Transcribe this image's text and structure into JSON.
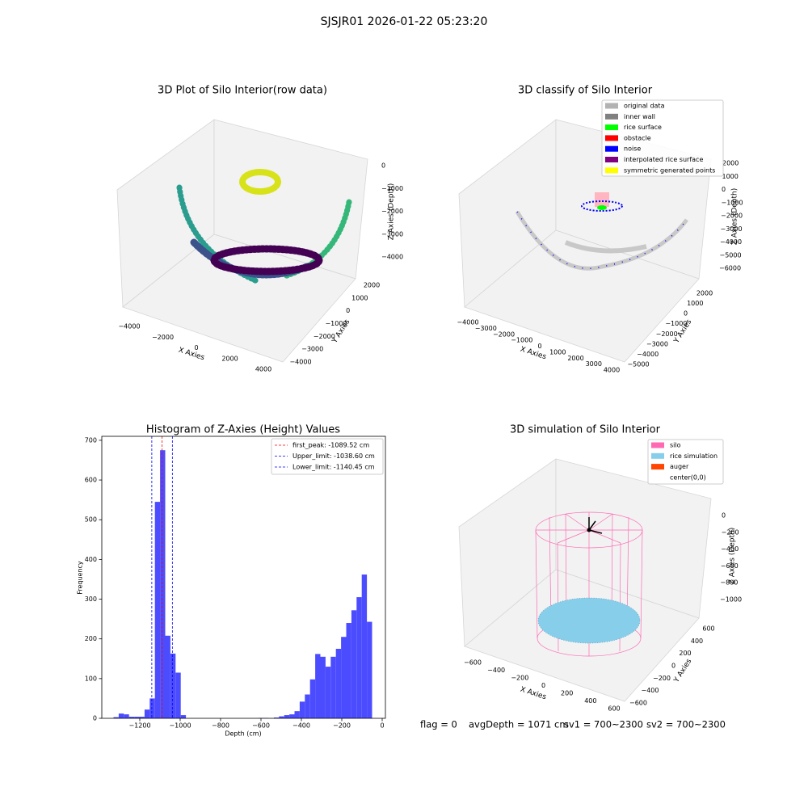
{
  "title": "SJSJR01 2026-01-22 05:23:20",
  "status": [
    "flag = 0",
    "avgDepth = 1071 cm",
    "sv1 = 700~2300",
    "sv2 = 700~2300"
  ],
  "chart_data": [
    {
      "type": "scatter3d",
      "title": "3D Plot of Silo Interior(row data)",
      "xlabel": "X Axies",
      "ylabel": "Y Axies",
      "zlabel": "Z Axies (Depth)",
      "xticks": [
        {
          "value": -4000,
          "label": "−4000"
        },
        {
          "value": -2000,
          "label": "−2000"
        },
        0,
        2000,
        4000
      ],
      "yticks": [
        {
          "value": -4000,
          "label": "−4000"
        },
        {
          "value": -3000,
          "label": "−3000"
        },
        {
          "value": -2000,
          "label": "−2000"
        },
        {
          "value": -1000,
          "label": "−1000"
        },
        0,
        1000,
        2000
      ],
      "zticks": [
        0,
        {
          "value": -1000,
          "label": "−1000"
        },
        {
          "value": -2000,
          "label": "−2000"
        },
        {
          "value": -3000,
          "label": "−3000"
        },
        {
          "value": -4000,
          "label": "−4000"
        }
      ]
    },
    {
      "type": "scatter3d",
      "title": "3D classify of Silo Interior",
      "xlabel": "X Axies",
      "ylabel": "Y Axies",
      "zlabel": "Z Axies (Depth)",
      "xticks": [
        {
          "value": -4000,
          "label": "−4000"
        },
        {
          "value": -3000,
          "label": "−3000"
        },
        {
          "value": -2000,
          "label": "−2000"
        },
        {
          "value": -1000,
          "label": "−1000"
        },
        0,
        1000,
        2000,
        3000,
        4000
      ],
      "yticks": [
        {
          "value": -5000,
          "label": "−5000"
        },
        {
          "value": -4000,
          "label": "−4000"
        },
        {
          "value": -3000,
          "label": "−3000"
        },
        {
          "value": -2000,
          "label": "−2000"
        },
        {
          "value": -1000,
          "label": "−1000"
        },
        0,
        1000,
        2000
      ],
      "zticks": [
        2000,
        1000,
        0,
        {
          "value": -1000,
          "label": "−1000"
        },
        {
          "value": -2000,
          "label": "−2000"
        },
        {
          "value": -3000,
          "label": "−3000"
        },
        {
          "value": -4000,
          "label": "−4000"
        },
        {
          "value": -5000,
          "label": "−5000"
        },
        {
          "value": -6000,
          "label": "−6000"
        }
      ],
      "series": [
        {
          "name": "original data",
          "color": "#b3b3b3"
        },
        {
          "name": "inner wall",
          "color": "#808080"
        },
        {
          "name": "rice surface",
          "color": "#00ff00"
        },
        {
          "name": "obstacle",
          "color": "#ff0000"
        },
        {
          "name": "noise",
          "color": "#0000ff"
        },
        {
          "name": "interpolated rice surface",
          "color": "#800080"
        },
        {
          "name": "symmetric generated points",
          "color": "#ffff00"
        }
      ]
    },
    {
      "type": "histogram",
      "title": "Histogram of Z-Axies (Height) Values",
      "xlabel": "Depth (cm)",
      "ylabel": "Frequency",
      "color": "#4c4cff",
      "bins": [
        -1330,
        -1304.4,
        -1278.8,
        -1253.2,
        -1227.6,
        -1202,
        -1176.4,
        -1150.8,
        -1125.2,
        -1099.6,
        -1074,
        -1048.4,
        -1022.8,
        -997.2,
        -971.6,
        -946,
        -920.4,
        -894.8,
        -869.2,
        -843.6,
        -818,
        -792.4,
        -766.8,
        -741.2,
        -715.6,
        -690,
        -664.4,
        -638.8,
        -613.2,
        -587.6,
        -562,
        -536.4,
        -510.8,
        -485.2,
        -459.6,
        -434,
        -408.4,
        -382.8,
        -357.2,
        -331.6,
        -306,
        -280.4,
        -254.8,
        -229.2,
        -203.6,
        -178,
        -152.4,
        -126.8,
        -101.2,
        -75.6,
        -50
      ],
      "values": [
        3,
        12,
        10,
        4,
        4,
        4,
        22,
        50,
        545,
        675,
        208,
        163,
        115,
        8,
        0,
        0,
        0,
        0,
        0,
        0,
        0,
        0,
        0,
        0,
        0,
        0,
        0,
        0,
        1,
        1,
        0,
        2,
        5,
        8,
        10,
        18,
        42,
        60,
        98,
        162,
        155,
        130,
        155,
        175,
        205,
        240,
        272,
        305,
        362,
        243
      ],
      "xlim": [
        -1388,
        16
      ],
      "ylim": [
        0,
        710
      ],
      "xticks": [
        {
          "value": -1200,
          "label": "−1200"
        },
        {
          "value": -1000,
          "label": "−1000"
        },
        {
          "value": -800,
          "label": "−800"
        },
        {
          "value": -600,
          "label": "−600"
        },
        {
          "value": -400,
          "label": "−400"
        },
        {
          "value": -200,
          "label": "−200"
        },
        0
      ],
      "yticks": [
        0,
        100,
        200,
        300,
        400,
        500,
        600,
        700
      ],
      "vlines": [
        {
          "name": "first_peak: -1089.52 cm",
          "value": -1089.52,
          "color": "#ff0000"
        },
        {
          "name": "Upper_limit: -1038.60 cm",
          "value": -1038.6,
          "color": "#0000ff"
        },
        {
          "name": "Lower_limit: -1140.45 cm",
          "value": -1140.45,
          "color": "#0000ff"
        }
      ]
    },
    {
      "type": "scatter3d",
      "title": "3D simulation of Silo Interior",
      "xlabel": "X Axies",
      "ylabel": "Y Axies",
      "zlabel": "Z Axies (Depth)",
      "xticks": [
        {
          "value": -600,
          "label": "−600"
        },
        {
          "value": -400,
          "label": "−400"
        },
        {
          "value": -200,
          "label": "−200"
        },
        0,
        200,
        400,
        600
      ],
      "yticks": [
        {
          "value": -600,
          "label": "−600"
        },
        {
          "value": -400,
          "label": "−400"
        },
        {
          "value": -200,
          "label": "−200"
        },
        0,
        200,
        400,
        600
      ],
      "zticks": [
        0,
        {
          "value": -200,
          "label": "−200"
        },
        {
          "value": -400,
          "label": "−400"
        },
        {
          "value": -600,
          "label": "−600"
        },
        {
          "value": -800,
          "label": "−800"
        },
        {
          "value": -1000,
          "label": "−1000"
        }
      ],
      "series": [
        {
          "name": "silo",
          "color": "#ff69b4"
        },
        {
          "name": "rice simulation",
          "color": "#87ceeb"
        },
        {
          "name": "auger",
          "color": "#ff4500"
        },
        {
          "name": "center(0,0)",
          "color": "#ffffff"
        }
      ]
    }
  ]
}
